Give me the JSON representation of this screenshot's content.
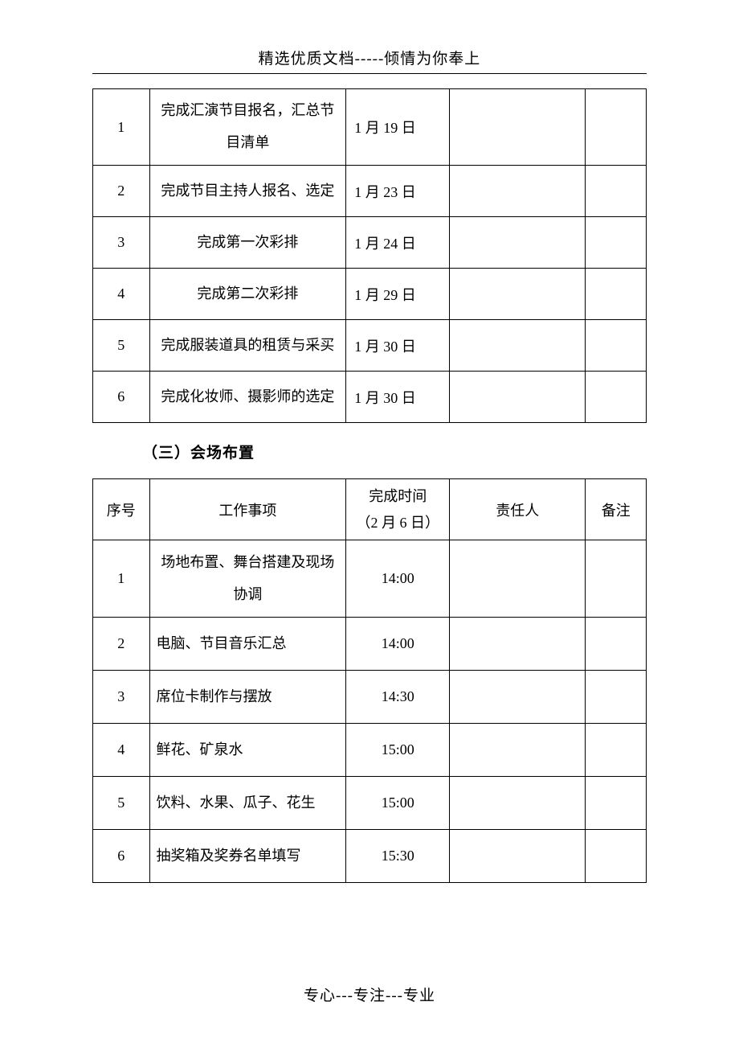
{
  "header": {
    "title": "精选优质文档-----倾情为你奉上"
  },
  "table1": {
    "rows": [
      {
        "num": "1",
        "task": "完成汇演节目报名，汇总节目清单",
        "date": "1 月 19 日",
        "person": "",
        "remark": ""
      },
      {
        "num": "2",
        "task": "完成节目主持人报名、选定",
        "date": "1 月 23 日",
        "person": "",
        "remark": ""
      },
      {
        "num": "3",
        "task": "完成第一次彩排",
        "date": "1 月 24 日",
        "person": "",
        "remark": ""
      },
      {
        "num": "4",
        "task": "完成第二次彩排",
        "date": "1 月 29 日",
        "person": "",
        "remark": ""
      },
      {
        "num": "5",
        "task": "完成服装道具的租赁与采买",
        "date": "1 月 30 日",
        "person": "",
        "remark": ""
      },
      {
        "num": "6",
        "task": "完成化妆师、摄影师的选定",
        "date": "1 月 30 日",
        "person": "",
        "remark": ""
      }
    ]
  },
  "section_heading": "（三）会场布置",
  "table2": {
    "headers": {
      "num": "序号",
      "task": "工作事项",
      "time_line1": "完成时间",
      "time_line2": "（2 月 6 日）",
      "person": "责任人",
      "remark": "备注"
    },
    "rows": [
      {
        "num": "1",
        "task": "场地布置、舞台搭建及现场协调",
        "time": "14:00",
        "person": "",
        "remark": ""
      },
      {
        "num": "2",
        "task": "电脑、节目音乐汇总",
        "time": "14:00",
        "person": "",
        "remark": ""
      },
      {
        "num": "3",
        "task": "席位卡制作与摆放",
        "time": "14:30",
        "person": "",
        "remark": ""
      },
      {
        "num": "4",
        "task": "鲜花、矿泉水",
        "time": "15:00",
        "person": "",
        "remark": ""
      },
      {
        "num": "5",
        "task": "饮料、水果、瓜子、花生",
        "time": "15:00",
        "person": "",
        "remark": ""
      },
      {
        "num": "6",
        "task": "抽奖箱及奖券名单填写",
        "time": "15:30",
        "person": "",
        "remark": ""
      }
    ]
  },
  "footer": "专心---专注---专业"
}
